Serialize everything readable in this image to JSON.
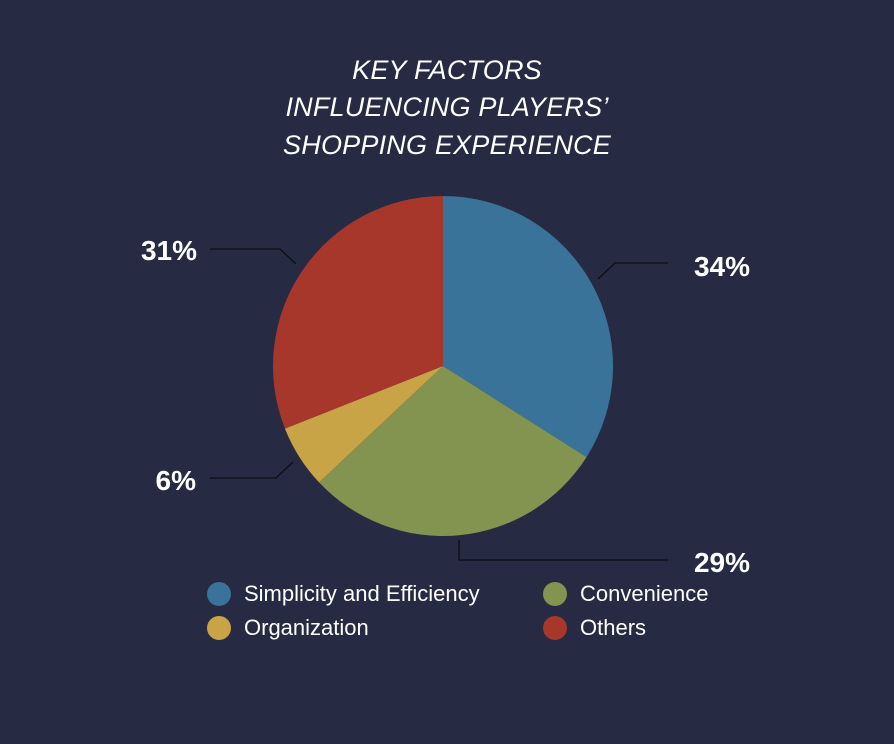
{
  "title_lines": [
    "KEY FACTORS",
    "INFLUENCING PLAYERS’",
    "SHOPPING EXPERIENCE"
  ],
  "colors": {
    "background": "#262a43",
    "text": "#ffffff",
    "leader_line": "#0d0e14"
  },
  "chart_data": {
    "type": "pie",
    "title": "KEY FACTORS INFLUENCING PLAYERS’ SHOPPING EXPERIENCE",
    "start_angle": "12 o'clock",
    "direction": "clockwise",
    "legend_position": "bottom",
    "slices": [
      {
        "name": "Simplicity and Efficiency",
        "value": 34,
        "label": "34%",
        "color": "#3a7399"
      },
      {
        "name": "Convenience",
        "value": 29,
        "label": "29%",
        "color": "#82944f"
      },
      {
        "name": "Organization",
        "value": 6,
        "label": "6%",
        "color": "#c9a446"
      },
      {
        "name": "Others",
        "value": 31,
        "label": "31%",
        "color": "#a7372b"
      }
    ]
  },
  "legend": [
    {
      "label": "Simplicity and Efficiency",
      "color": "#3a7399"
    },
    {
      "label": "Convenience",
      "color": "#82944f"
    },
    {
      "label": "Organization",
      "color": "#c9a446"
    },
    {
      "label": "Others",
      "color": "#a7372b"
    }
  ]
}
